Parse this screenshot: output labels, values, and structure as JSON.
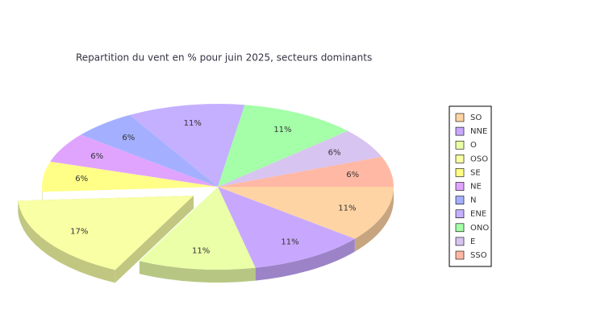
{
  "chart_data": {
    "type": "pie",
    "title": "Repartition du vent en % pour juin 2025, secteurs dominants",
    "categories": [
      "SO",
      "NNE",
      "O",
      "OSO",
      "SE",
      "NE",
      "N",
      "ENE",
      "ONO",
      "E",
      "SSO"
    ],
    "values": [
      11,
      11,
      11,
      17,
      6,
      6,
      6,
      11,
      11,
      6,
      6
    ],
    "value_labels": [
      "11%",
      "11%",
      "11%",
      "17%",
      "6%",
      "6%",
      "6%",
      "11%",
      "11%",
      "6%",
      "6%"
    ],
    "colors": [
      "#ffd4a4",
      "#c8a8ff",
      "#eaffa8",
      "#f8ffa4",
      "#ffff88",
      "#e0a4ff",
      "#a4b0ff",
      "#c4b0ff",
      "#a4ffa8",
      "#d8c4f0",
      "#ffb8a4"
    ],
    "exploded": "OSO",
    "legend": "right"
  }
}
